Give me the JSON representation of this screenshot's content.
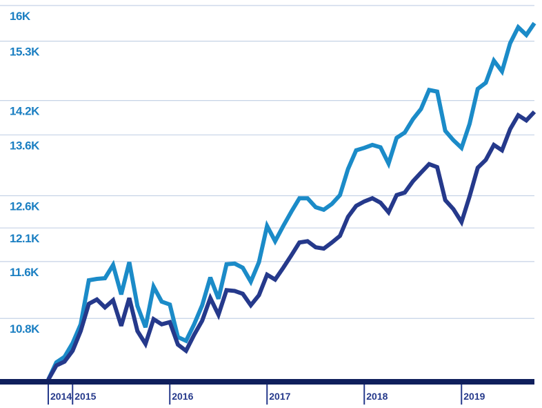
{
  "chart_data": {
    "type": "line",
    "log_y": true,
    "grid": true,
    "x": [
      2014.75,
      2014.833,
      2014.917,
      2015,
      2015.083,
      2015.167,
      2015.25,
      2015.333,
      2015.417,
      2015.5,
      2015.583,
      2015.667,
      2015.75,
      2015.833,
      2015.917,
      2016,
      2016.083,
      2016.167,
      2016.25,
      2016.333,
      2016.417,
      2016.5,
      2016.583,
      2016.667,
      2016.75,
      2016.833,
      2016.917,
      2017,
      2017.083,
      2017.167,
      2017.25,
      2017.333,
      2017.417,
      2017.5,
      2017.583,
      2017.667,
      2017.75,
      2017.833,
      2017.917,
      2018,
      2018.083,
      2018.167,
      2018.25,
      2018.333,
      2018.417,
      2018.5,
      2018.583,
      2018.667,
      2018.75,
      2018.833,
      2018.917,
      2019,
      2019.083,
      2019.167,
      2019.25,
      2019.333,
      2019.417,
      2019.5,
      2019.583,
      2019.667,
      2019.75
    ],
    "series": [
      {
        "color": "#1b8bc8",
        "values": [
          10000,
          10220,
          10290,
          10470,
          10720,
          11330,
          11350,
          11360,
          11550,
          11130,
          11590,
          10970,
          10680,
          11240,
          11030,
          10990,
          10550,
          10500,
          10720,
          10980,
          11370,
          11070,
          11560,
          11570,
          11510,
          11310,
          11590,
          12130,
          11900,
          12130,
          12350,
          12560,
          12560,
          12420,
          12380,
          12470,
          12610,
          13030,
          13340,
          13380,
          13430,
          13390,
          13120,
          13550,
          13640,
          13870,
          14050,
          14390,
          14360,
          13670,
          13510,
          13380,
          13790,
          14410,
          14520,
          14930,
          14730,
          15260,
          15570,
          15420,
          15650
        ]
      },
      {
        "color": "#25398b",
        "values": [
          10000,
          10180,
          10230,
          10370,
          10630,
          11000,
          11060,
          10950,
          11050,
          10700,
          11080,
          10630,
          10460,
          10790,
          10720,
          10750,
          10450,
          10370,
          10580,
          10770,
          11080,
          10850,
          11190,
          11180,
          11140,
          10980,
          11120,
          11410,
          11340,
          11510,
          11690,
          11880,
          11900,
          11810,
          11790,
          11880,
          11980,
          12270,
          12440,
          12510,
          12560,
          12490,
          12340,
          12610,
          12650,
          12830,
          12970,
          13110,
          13060,
          12530,
          12390,
          12190,
          12590,
          13050,
          13180,
          13430,
          13340,
          13700,
          13940,
          13850,
          14000
        ]
      }
    ],
    "xlim": [
      2014.75,
      2019.75
    ],
    "xticks": [
      {
        "value": 2014.75,
        "label": "2014"
      },
      2015,
      2016,
      2017,
      2018,
      2019
    ],
    "ylim": [
      10000,
      16000
    ],
    "yticks": [
      {
        "value": 10800,
        "label": "10.8K"
      },
      {
        "value": 11600,
        "label": "11.6K"
      },
      {
        "value": 12100,
        "label": "12.1K"
      },
      {
        "value": 12600,
        "label": "12.6K"
      },
      {
        "value": 13600,
        "label": "13.6K"
      },
      {
        "value": 14200,
        "label": "14.2K"
      },
      {
        "value": 15300,
        "label": "15.3K"
      },
      {
        "value": 16000,
        "label": "16K"
      }
    ]
  }
}
